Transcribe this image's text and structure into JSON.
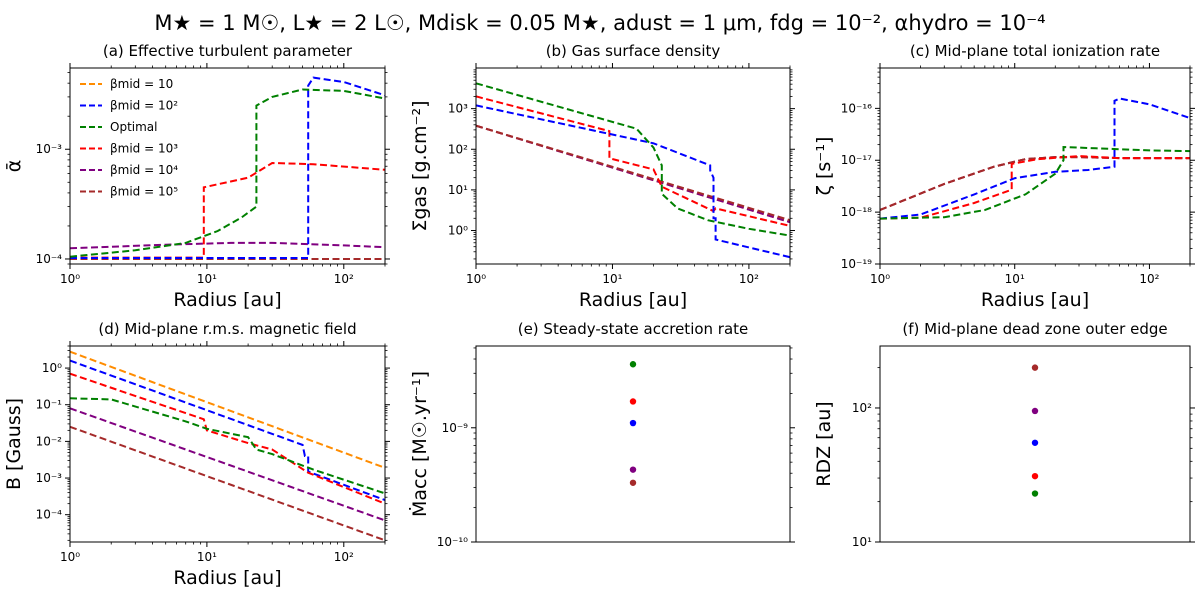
{
  "figure": {
    "suptitle": "M★ = 1 M☉, L★ = 2 L☉, Mdisk = 0.05 M★, adust = 1 μm, fdg = 10⁻², αhydro = 10⁻⁴",
    "colors": {
      "b10": "#ff8c00",
      "b100": "#0000ff",
      "optimal": "#008000",
      "b1000": "#ff0000",
      "b1e4": "#800080",
      "b1e5": "#a52a2a"
    }
  },
  "chart_data": [
    {
      "id": "a",
      "type": "line",
      "title": "(a) Effective turbulent parameter",
      "xlabel": "Radius [au]",
      "ylabel": "ᾱ",
      "xscale": "log",
      "yscale": "log",
      "xlim": [
        1,
        200
      ],
      "ylim": [
        9e-05,
        0.0055
      ],
      "xticks": [
        {
          "v": 1,
          "label": "10⁰"
        },
        {
          "v": 10,
          "label": "10¹"
        },
        {
          "v": 100,
          "label": "10²"
        }
      ],
      "yticks": [
        {
          "v": 0.0001,
          "label": "10⁻⁴"
        },
        {
          "v": 0.001,
          "label": "10⁻³"
        }
      ],
      "legend": {
        "position": "upper-left",
        "entries": [
          {
            "key": "b10",
            "label": "βmid = 10"
          },
          {
            "key": "b100",
            "label": "βmid = 10²"
          },
          {
            "key": "optimal",
            "label": "Optimal"
          },
          {
            "key": "b1000",
            "label": "βmid = 10³"
          },
          {
            "key": "b1e4",
            "label": "βmid = 10⁴"
          },
          {
            "key": "b1e5",
            "label": "βmid = 10⁵"
          }
        ]
      },
      "series": [
        {
          "key": "b10",
          "name": "βmid = 10",
          "x": [
            1,
            200
          ],
          "y": [
            0.0001,
            0.0001
          ]
        },
        {
          "key": "b1e5",
          "name": "βmid = 10⁵",
          "x": [
            1,
            200
          ],
          "y": [
            0.0001,
            0.0001
          ]
        },
        {
          "key": "b1e4",
          "name": "βmid = 10⁴",
          "x": [
            1,
            5,
            15,
            30,
            100,
            200
          ],
          "y": [
            0.000125,
            0.000135,
            0.00014,
            0.00014,
            0.000133,
            0.000128
          ]
        },
        {
          "key": "b1000",
          "name": "βmid = 10³",
          "x": [
            1,
            9.5,
            9.5,
            20,
            30,
            60,
            200
          ],
          "y": [
            0.000103,
            0.000103,
            0.00045,
            0.00055,
            0.00075,
            0.00073,
            0.00065
          ]
        },
        {
          "key": "b100",
          "name": "βmid = 10²",
          "x": [
            1,
            55,
            55,
            60,
            100,
            200
          ],
          "y": [
            0.000102,
            0.000102,
            0.0038,
            0.0045,
            0.0041,
            0.0031
          ]
        },
        {
          "key": "optimal",
          "name": "Optimal",
          "x": [
            1,
            3,
            7,
            12,
            18,
            23,
            23,
            30,
            50,
            100,
            200
          ],
          "y": [
            0.000105,
            0.00012,
            0.00014,
            0.00018,
            0.00024,
            0.0003,
            0.0025,
            0.003,
            0.0035,
            0.0034,
            0.0029
          ]
        }
      ]
    },
    {
      "id": "b",
      "type": "line",
      "title": "(b) Gas surface density",
      "xlabel": "Radius [au]",
      "ylabel": "Σgas [g.cm⁻²]",
      "xscale": "log",
      "yscale": "log",
      "xlim": [
        1,
        200
      ],
      "ylim": [
        0.15,
        10000
      ],
      "xticks": [
        {
          "v": 1,
          "label": "10⁰"
        },
        {
          "v": 10,
          "label": "10¹"
        },
        {
          "v": 100,
          "label": "10²"
        }
      ],
      "yticks": [
        {
          "v": 1,
          "label": "10⁰"
        },
        {
          "v": 10,
          "label": "10¹"
        },
        {
          "v": 100,
          "label": "10²"
        },
        {
          "v": 1000,
          "label": "10³"
        }
      ],
      "series": [
        {
          "key": "b10",
          "name": "βmid = 10",
          "x": [
            1,
            200
          ],
          "y": [
            380,
            1.6
          ]
        },
        {
          "key": "b1e4",
          "name": "βmid = 10⁴",
          "x": [
            1,
            200
          ],
          "y": [
            380,
            1.6
          ]
        },
        {
          "key": "b1e5",
          "name": "βmid = 10⁵",
          "x": [
            1,
            200
          ],
          "y": [
            380,
            1.8
          ]
        },
        {
          "key": "b1000",
          "name": "βmid = 10³",
          "x": [
            1,
            9.5,
            9.5,
            20,
            23,
            55,
            57,
            200
          ],
          "y": [
            2000,
            280,
            60,
            32,
            12,
            3,
            3.5,
            1.3
          ]
        },
        {
          "key": "b100",
          "name": "βmid = 10²",
          "x": [
            1,
            20,
            52,
            52,
            55,
            55,
            57,
            57,
            200
          ],
          "y": [
            1200,
            140,
            40,
            30,
            20,
            2,
            2,
            0.6,
            0.22
          ]
        },
        {
          "key": "optimal",
          "name": "Optimal",
          "x": [
            1,
            15,
            20,
            23,
            23,
            30,
            50,
            100,
            200
          ],
          "y": [
            4200,
            320,
            110,
            40,
            8,
            3.5,
            1.8,
            1.1,
            0.75
          ]
        }
      ]
    },
    {
      "id": "c",
      "type": "line",
      "title": "(c) Mid-plane total ionization rate",
      "xlabel": "Radius [au]",
      "ylabel": "ζ [s⁻¹]",
      "xscale": "log",
      "yscale": "log",
      "xlim": [
        1,
        200
      ],
      "ylim": [
        1e-19,
        6e-16
      ],
      "xticks": [
        {
          "v": 1,
          "label": "10⁰"
        },
        {
          "v": 10,
          "label": "10¹"
        },
        {
          "v": 100,
          "label": "10²"
        }
      ],
      "yticks": [
        {
          "v": 1e-19,
          "label": "10⁻¹⁹"
        },
        {
          "v": 1e-18,
          "label": "10⁻¹⁸"
        },
        {
          "v": 1e-17,
          "label": "10⁻¹⁷"
        },
        {
          "v": 1e-16,
          "label": "10⁻¹⁶"
        }
      ],
      "series": [
        {
          "key": "b10",
          "name": "βmid = 10",
          "x": [
            1,
            3,
            7,
            12,
            20,
            30,
            60,
            200
          ],
          "y": [
            1.1e-18,
            3.5e-18,
            7.5e-18,
            1.05e-17,
            1.15e-17,
            1.15e-17,
            1.1e-17,
            1.1e-17
          ]
        },
        {
          "key": "b1e4",
          "name": "βmid = 10⁴",
          "x": [
            1,
            3,
            7,
            12,
            20,
            30,
            60,
            200
          ],
          "y": [
            1.1e-18,
            3.5e-18,
            7.5e-18,
            1.05e-17,
            1.15e-17,
            1.15e-17,
            1.1e-17,
            1.1e-17
          ]
        },
        {
          "key": "b1e5",
          "name": "βmid = 10⁵",
          "x": [
            1,
            3,
            7,
            12,
            20,
            30,
            60,
            200
          ],
          "y": [
            1.1e-18,
            3.5e-18,
            7.5e-18,
            1.05e-17,
            1.15e-17,
            1.15e-17,
            1.1e-17,
            1.1e-17
          ]
        },
        {
          "key": "b1000",
          "name": "βmid = 10³",
          "x": [
            1,
            2,
            5,
            9.5,
            9.5,
            15,
            30,
            60,
            200
          ],
          "y": [
            7.5e-19,
            7.8e-19,
            1.5e-18,
            2.7e-18,
            8.5e-18,
            1.05e-17,
            1.2e-17,
            1.1e-17,
            1.1e-17
          ]
        },
        {
          "key": "b100",
          "name": "βmid = 10²",
          "x": [
            1,
            2,
            5,
            10,
            20,
            35,
            55,
            55,
            60,
            100,
            200
          ],
          "y": [
            7.5e-19,
            9e-19,
            2.2e-18,
            4.5e-18,
            6e-18,
            6.5e-18,
            7.5e-18,
            1.4e-16,
            1.55e-16,
            1.2e-16,
            6.5e-17
          ]
        },
        {
          "key": "optimal",
          "name": "Optimal",
          "x": [
            1,
            3,
            6,
            12,
            20,
            23,
            23,
            40,
            100,
            200
          ],
          "y": [
            7.5e-19,
            8e-19,
            1.1e-18,
            2.2e-18,
            5.5e-18,
            1e-17,
            1.8e-17,
            1.7e-17,
            1.55e-17,
            1.5e-17
          ]
        }
      ]
    },
    {
      "id": "d",
      "type": "line",
      "title": "(d) Mid-plane r.m.s. magnetic field",
      "xlabel": "Radius [au]",
      "ylabel": "B [Gauss]",
      "xscale": "log",
      "yscale": "log",
      "xlim": [
        1,
        200
      ],
      "ylim": [
        1.8e-05,
        4
      ],
      "xticks": [
        {
          "v": 1,
          "label": "10⁰"
        },
        {
          "v": 10,
          "label": "10¹"
        },
        {
          "v": 100,
          "label": "10²"
        }
      ],
      "yticks": [
        {
          "v": 0.0001,
          "label": "10⁻⁴"
        },
        {
          "v": 0.001,
          "label": "10⁻³"
        },
        {
          "v": 0.01,
          "label": "10⁻²"
        },
        {
          "v": 0.1,
          "label": "10⁻¹"
        },
        {
          "v": 1,
          "label": "10⁰"
        }
      ],
      "series": [
        {
          "key": "b10",
          "name": "βmid = 10",
          "x": [
            1,
            200
          ],
          "y": [
            2.8,
            0.0019
          ]
        },
        {
          "key": "b100",
          "name": "βmid = 10²",
          "x": [
            1,
            50,
            52,
            55,
            55,
            200
          ],
          "y": [
            1.6,
            0.008,
            0.004,
            0.004,
            0.0015,
            0.00025
          ]
        },
        {
          "key": "b1000",
          "name": "βmid = 10³",
          "x": [
            1,
            9.5,
            10,
            20,
            30,
            55,
            200
          ],
          "y": [
            0.7,
            0.04,
            0.02,
            0.009,
            0.006,
            0.0014,
            0.0002
          ]
        },
        {
          "key": "optimal",
          "name": "Optimal",
          "x": [
            1,
            2,
            7,
            10,
            20,
            23,
            30,
            60,
            200
          ],
          "y": [
            0.15,
            0.14,
            0.035,
            0.022,
            0.013,
            0.006,
            0.0045,
            0.0017,
            0.00038
          ]
        },
        {
          "key": "b1e4",
          "name": "βmid = 10⁴",
          "x": [
            1,
            200
          ],
          "y": [
            0.08,
            7e-05
          ]
        },
        {
          "key": "b1e5",
          "name": "βmid = 10⁵",
          "x": [
            1,
            200
          ],
          "y": [
            0.025,
            2e-05
          ]
        }
      ]
    },
    {
      "id": "e",
      "type": "scatter",
      "title": "(e) Steady-state accretion rate",
      "xlabel": "",
      "ylabel": "Ṁacc [M☉.yr⁻¹]",
      "yscale": "log",
      "ylim": [
        1e-10,
        5.2e-09
      ],
      "yticks": [
        {
          "v": 1e-10,
          "label": "10⁻¹⁰"
        },
        {
          "v": 1e-09,
          "label": "10⁻⁹"
        }
      ],
      "points": [
        {
          "key": "optimal",
          "name": "Optimal",
          "y": 3.6e-09
        },
        {
          "key": "b1000",
          "name": "βmid = 10³",
          "y": 1.7e-09
        },
        {
          "key": "b100",
          "name": "βmid = 10²",
          "y": 1.1e-09
        },
        {
          "key": "b1e4",
          "name": "βmid = 10⁴",
          "y": 4.3e-10
        },
        {
          "key": "b1e5",
          "name": "βmid = 10⁵",
          "y": 3.3e-10
        }
      ]
    },
    {
      "id": "f",
      "type": "scatter",
      "title": "(f) Mid-plane dead zone outer edge",
      "xlabel": "",
      "ylabel": "RDZ [au]",
      "yscale": "log",
      "ylim": [
        10,
        290
      ],
      "yticks": [
        {
          "v": 10,
          "label": "10¹"
        },
        {
          "v": 100,
          "label": "10²"
        }
      ],
      "points": [
        {
          "key": "b1e5",
          "name": "βmid = 10⁵",
          "y": 200
        },
        {
          "key": "b1e4",
          "name": "βmid = 10⁴",
          "y": 95
        },
        {
          "key": "b100",
          "name": "βmid = 10²",
          "y": 55
        },
        {
          "key": "b1000",
          "name": "βmid = 10³",
          "y": 31
        },
        {
          "key": "optimal",
          "name": "Optimal",
          "y": 23
        }
      ]
    }
  ]
}
